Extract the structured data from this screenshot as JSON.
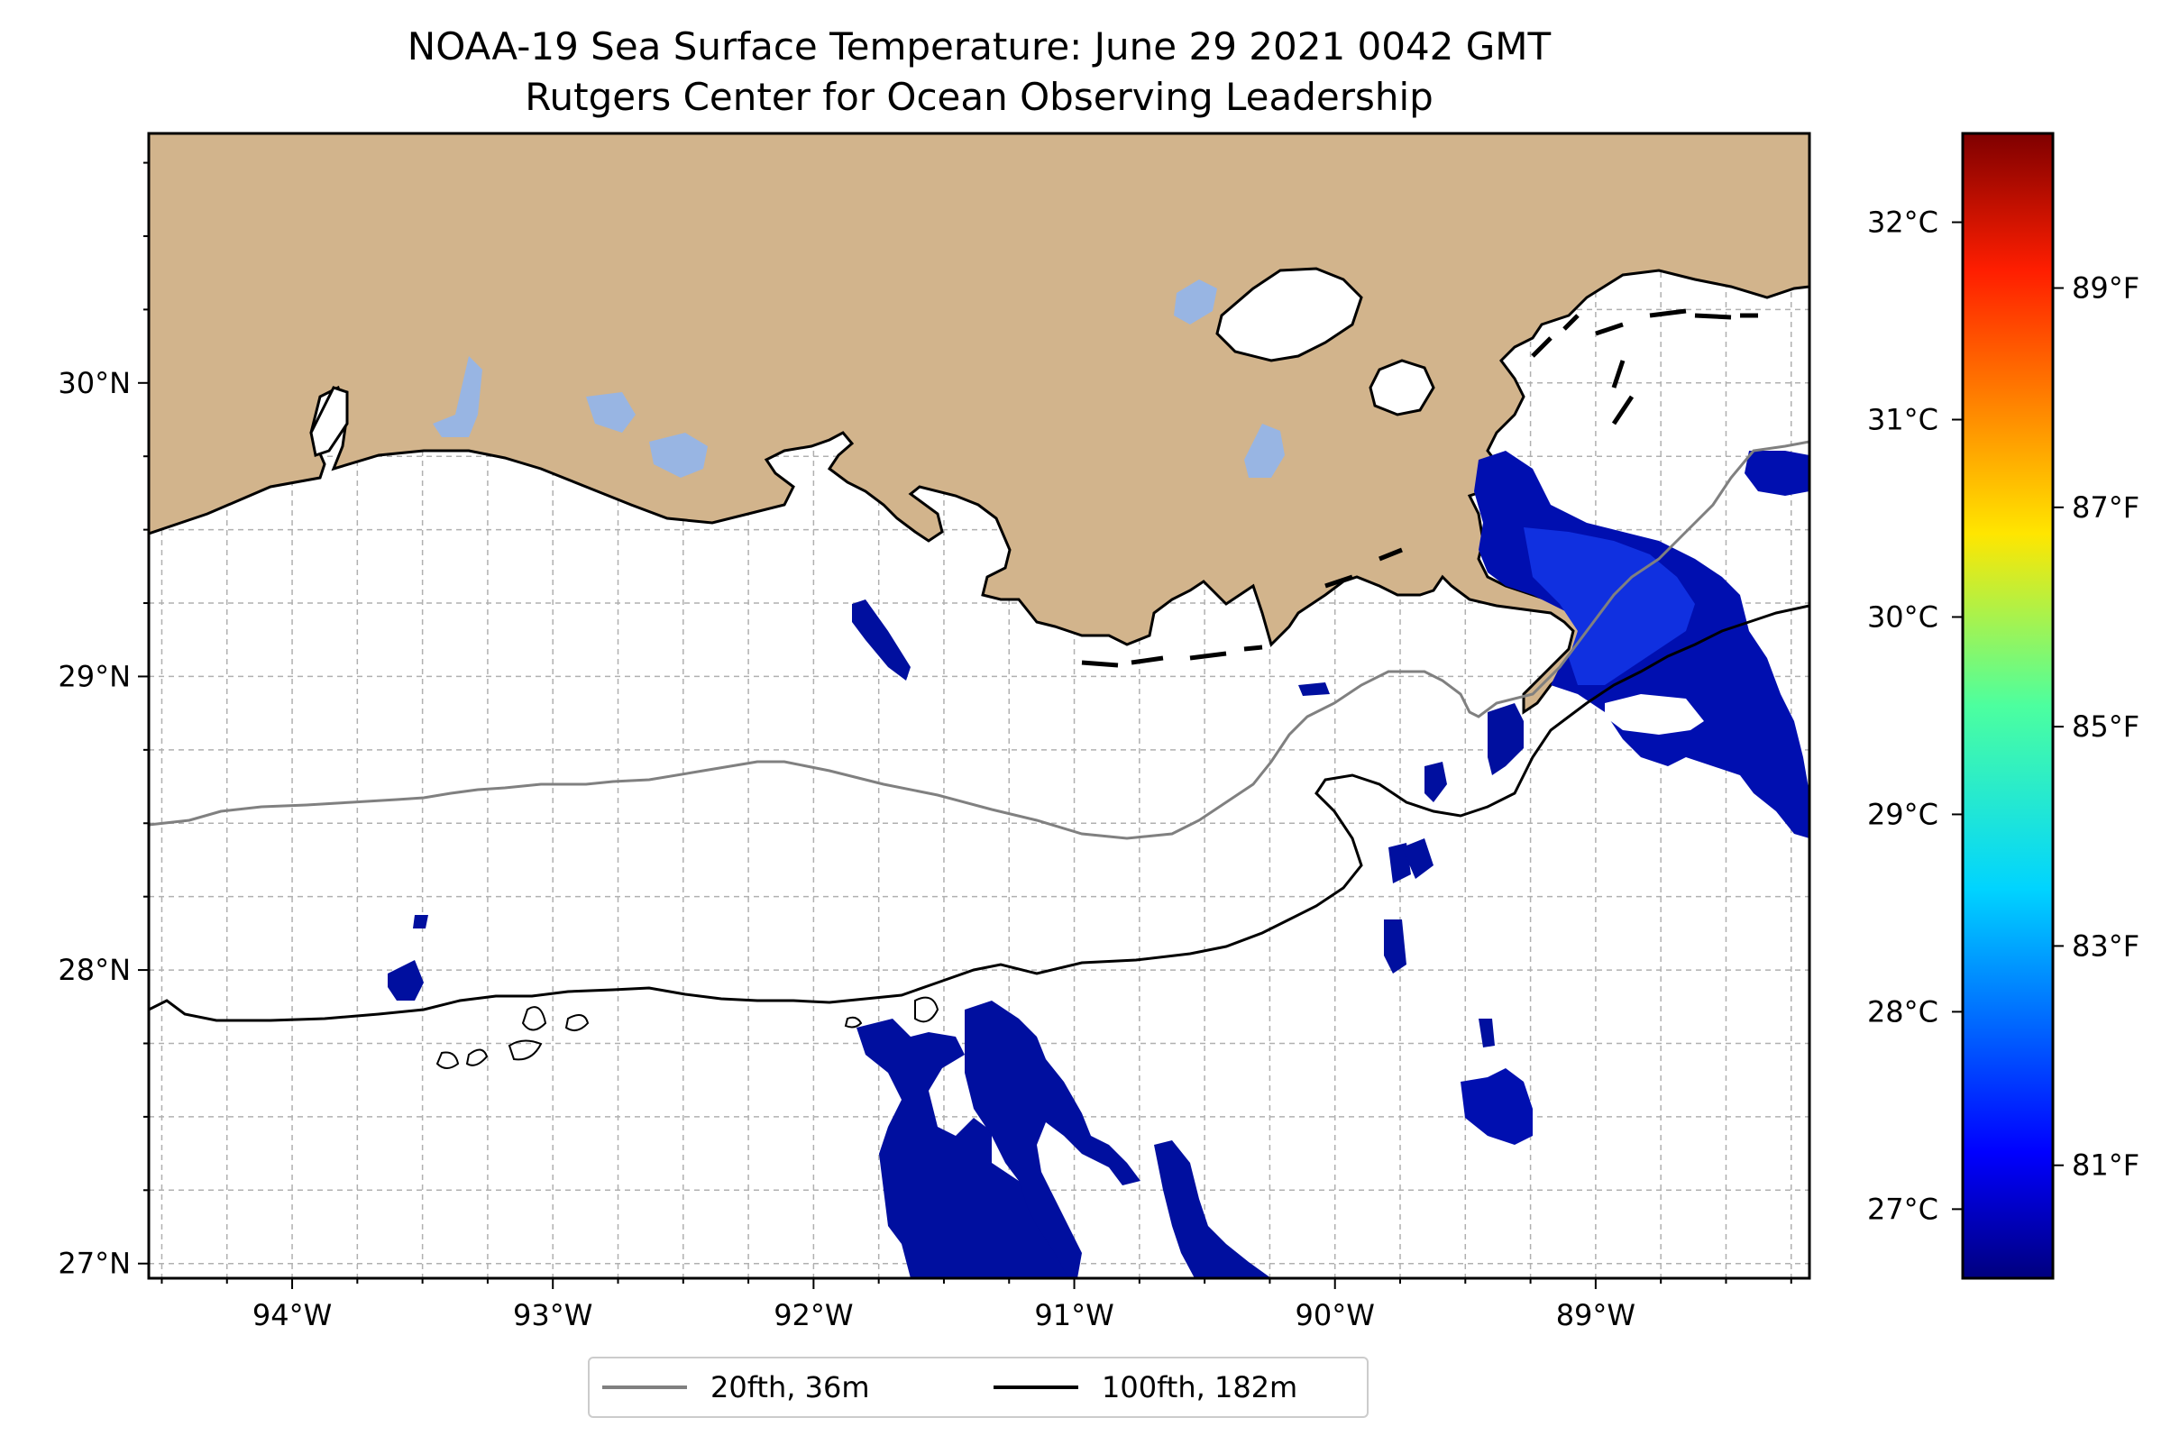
{
  "title": {
    "line1": "NOAA-19 Sea Surface Temperature: June 29 2021 0042 GMT",
    "line2": "Rutgers Center for Ocean Observing Leadership"
  },
  "map": {
    "lon_range": [
      -94.55,
      -88.18
    ],
    "lat_range": [
      26.95,
      30.85
    ],
    "lon_ticks": [
      {
        "value": -94,
        "label": "94°W"
      },
      {
        "value": -93,
        "label": "93°W"
      },
      {
        "value": -92,
        "label": "92°W"
      },
      {
        "value": -91,
        "label": "91°W"
      },
      {
        "value": -90,
        "label": "90°W"
      },
      {
        "value": -89,
        "label": "89°W"
      }
    ],
    "lat_ticks": [
      {
        "value": 27,
        "label": "27°N"
      },
      {
        "value": 28,
        "label": "28°N"
      },
      {
        "value": 29,
        "label": "29°N"
      },
      {
        "value": 30,
        "label": "30°N"
      }
    ],
    "grid": true,
    "land_color": "#d2b48c",
    "lake_color": "#98b5e3",
    "ocean_color": "#ffffff"
  },
  "colorbar": {
    "colormap": "jet",
    "c_range": [
      26.65,
      32.45
    ],
    "celsius_ticks": [
      {
        "value": 27,
        "label": "27°C"
      },
      {
        "value": 28,
        "label": "28°C"
      },
      {
        "value": 29,
        "label": "29°C"
      },
      {
        "value": 30,
        "label": "30°C"
      },
      {
        "value": 31,
        "label": "31°C"
      },
      {
        "value": 32,
        "label": "32°C"
      }
    ],
    "fahrenheit_ticks": [
      {
        "value": 81,
        "label": "81°F"
      },
      {
        "value": 83,
        "label": "83°F"
      },
      {
        "value": 85,
        "label": "85°F"
      },
      {
        "value": 87,
        "label": "87°F"
      },
      {
        "value": 89,
        "label": "89°F"
      }
    ]
  },
  "legend": {
    "items": [
      {
        "label": "20fth, 36m",
        "color": "#808080"
      },
      {
        "label": "100fth, 182m",
        "color": "#000000"
      }
    ]
  }
}
